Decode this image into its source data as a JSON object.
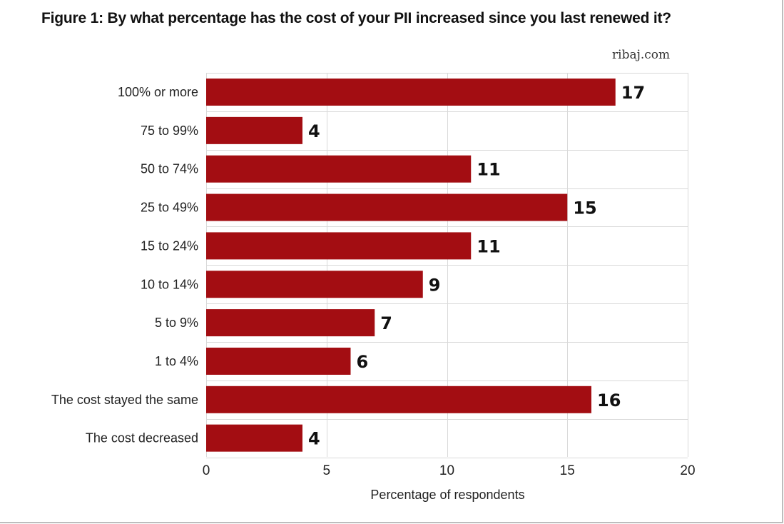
{
  "title": "Figure 1: By what percentage has the cost of your PII increased since you last renewed it?",
  "source": "ribaj.com",
  "colors": {
    "bar": "#a30d12",
    "grid": "#d9d9d9",
    "text": "#222222"
  },
  "chart_data": {
    "type": "bar",
    "orientation": "horizontal",
    "title": "Figure 1: By what percentage has the cost of your PII increased since you last renewed it?",
    "categories": [
      "100% or more",
      "75 to 99%",
      "50 to 74%",
      "25 to 49%",
      "15 to 24%",
      "10 to 14%",
      "5 to 9%",
      "1 to 4%",
      "The cost stayed the same",
      "The cost decreased"
    ],
    "values": [
      17,
      4,
      11,
      15,
      11,
      9,
      7,
      6,
      16,
      4
    ],
    "xlabel": "Percentage of respondents",
    "ylabel": "",
    "xlim": [
      0,
      20
    ],
    "xticks": [
      0,
      5,
      10,
      15,
      20
    ],
    "grid": true,
    "data_labels": true
  }
}
